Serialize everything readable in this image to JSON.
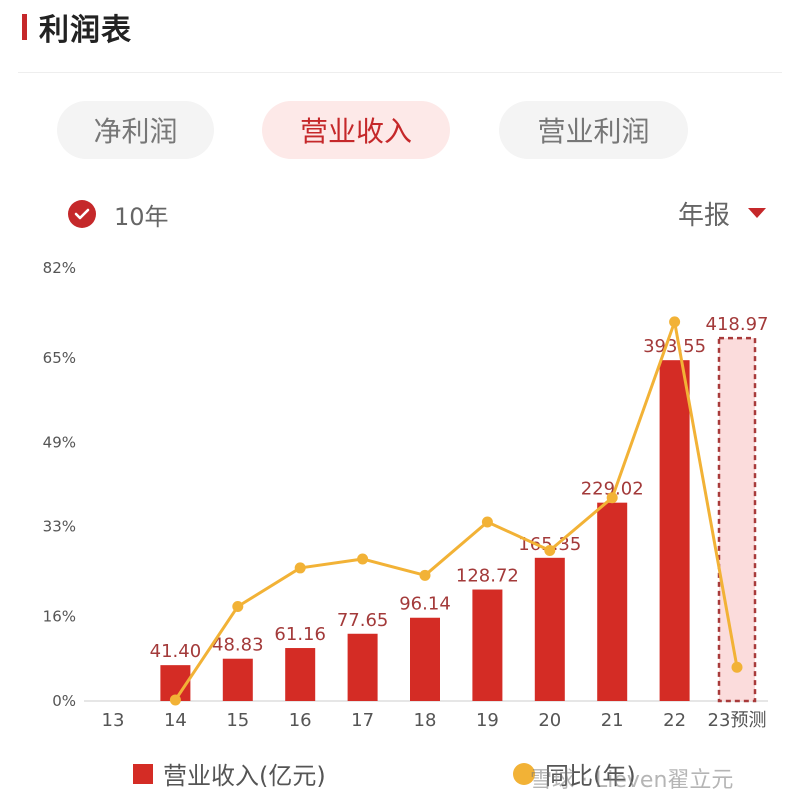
{
  "header": {
    "title": "利润表"
  },
  "tabs": [
    {
      "label": "净利润",
      "active": false
    },
    {
      "label": "营业收入",
      "active": true
    },
    {
      "label": "营业利润",
      "active": false
    }
  ],
  "options": {
    "range_label": "10年",
    "period_label": "年报"
  },
  "legend": {
    "bar_label": "营业收入(亿元)",
    "line_label": "同比(年)"
  },
  "watermark": "雪球 · Lieven翟立元",
  "colors": {
    "accent": "#c5282a",
    "bar": "#d42c25",
    "line": "#f2b236",
    "forecast_fill": "#fbdcdc",
    "forecast_border": "#a83a3a"
  },
  "chart_data": {
    "type": "bar",
    "categories": [
      "13",
      "14",
      "15",
      "16",
      "17",
      "18",
      "19",
      "20",
      "21",
      "22",
      "23预测"
    ],
    "bar_values": [
      null,
      41.4,
      48.83,
      61.16,
      77.65,
      96.14,
      128.72,
      165.35,
      229.02,
      393.55,
      418.97
    ],
    "bar_labels": [
      "",
      "41.40",
      "48.83",
      "61.16",
      "77.65",
      "96.14",
      "128.72",
      "165.35",
      "229.02",
      "393.55",
      "418.97"
    ],
    "bar_ylim": [
      0,
      500
    ],
    "forecast_index": 10,
    "line_values": [
      null,
      0.2,
      17.9,
      25.2,
      26.9,
      23.8,
      33.9,
      28.5,
      38.5,
      71.8,
      6.4
    ],
    "ylim": [
      0,
      82
    ],
    "y_ticks": [
      "0%",
      "16%",
      "33%",
      "49%",
      "65%",
      "82%"
    ],
    "y_tick_values": [
      0,
      16,
      33,
      49,
      65,
      82
    ],
    "series": [
      {
        "name": "营业收入(亿元)",
        "type": "bar"
      },
      {
        "name": "同比(年)",
        "type": "line"
      }
    ]
  }
}
